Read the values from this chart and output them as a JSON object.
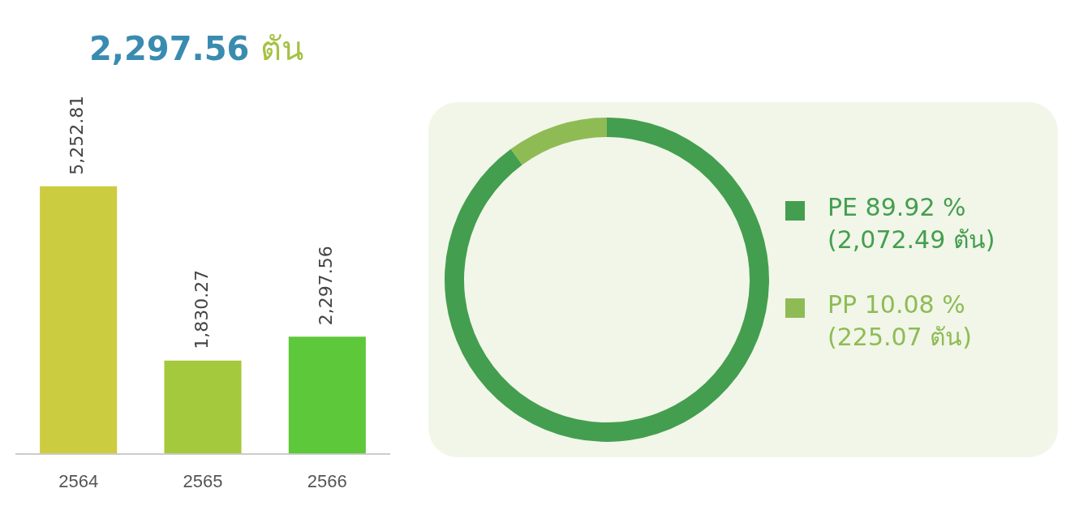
{
  "chart_data": [
    {
      "type": "bar",
      "title": "2,297.56 ตัน",
      "categories": [
        "2564",
        "2565",
        "2566"
      ],
      "values": [
        5252.81,
        1830.27,
        2297.56
      ],
      "colors": [
        "#cccc40",
        "#a4c93c",
        "#5cc83a"
      ],
      "value_labels": [
        "5,252.81",
        "1,830.27",
        "2,297.56"
      ],
      "tick_labels": "x",
      "grid": false,
      "legend": false
    },
    {
      "type": "donut",
      "categories": [
        "PE",
        "PP"
      ],
      "values": [
        89.92,
        10.08
      ],
      "value_labels": [
        "89.92 % (2,072.49 ตัน)",
        "10.08 % (225.07 ตัน)"
      ],
      "colors": [
        "#449e4f",
        "#8fbb55"
      ],
      "legend": "right"
    }
  ]
}
